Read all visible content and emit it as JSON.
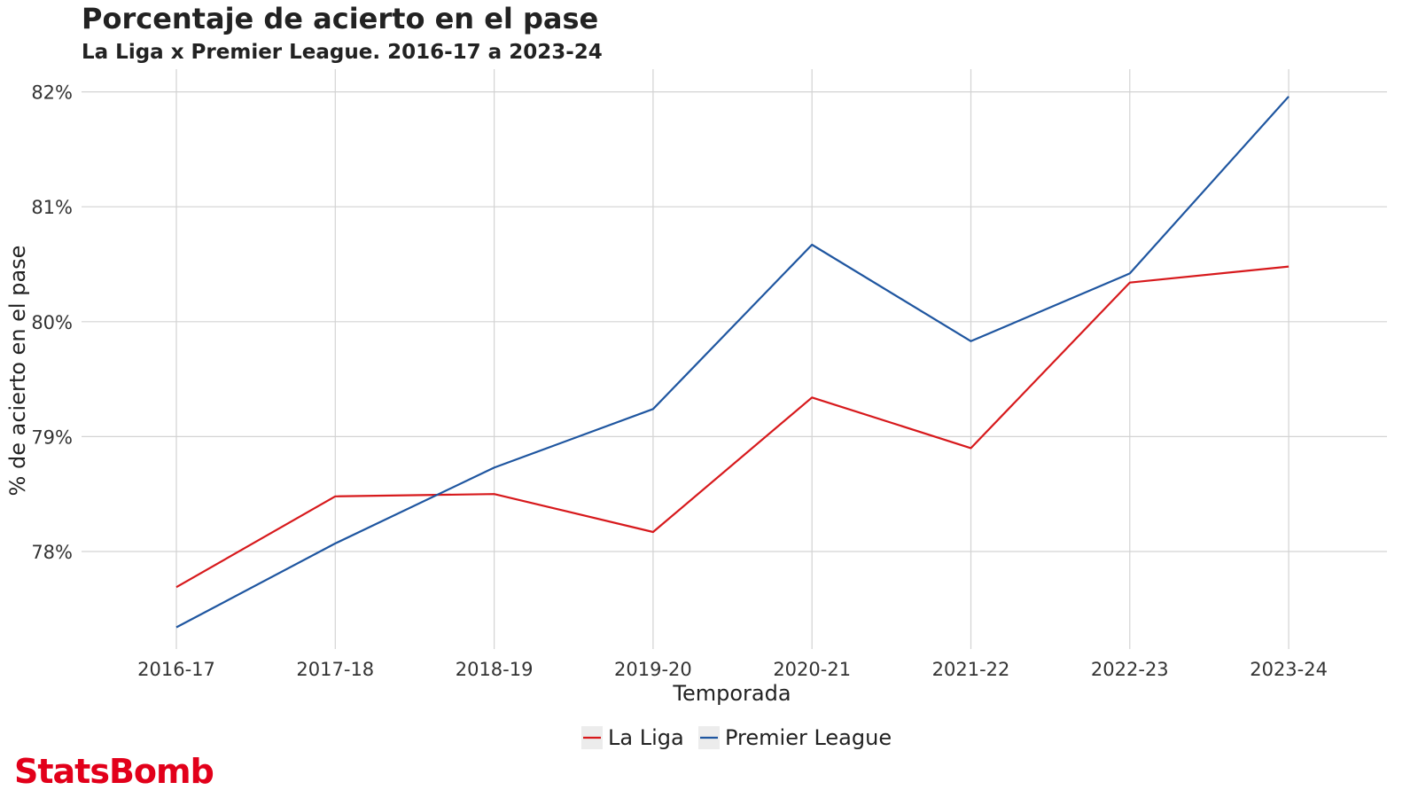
{
  "brand": {
    "name": "StatsBomb",
    "color": "#e2001a"
  },
  "chart_data": {
    "type": "line",
    "title": "Porcentaje de acierto en el pase",
    "subtitle": "La Liga x Premier League. 2016-17 a 2023-24",
    "xlabel": "Temporada",
    "ylabel": "% de acierto en el pase",
    "categories": [
      "2016-17",
      "2017-18",
      "2018-19",
      "2019-20",
      "2020-21",
      "2021-22",
      "2022-23",
      "2023-24"
    ],
    "y_ticks": [
      78,
      79,
      80,
      81,
      82
    ],
    "y_tick_labels": [
      "78%",
      "79%",
      "80%",
      "81%",
      "82%"
    ],
    "ylim": [
      77.15,
      82.2
    ],
    "grid": true,
    "legend_position": "bottom",
    "series": [
      {
        "name": "La Liga",
        "color": "#d7191c",
        "values": [
          77.69,
          78.48,
          78.5,
          78.17,
          79.34,
          78.9,
          80.34,
          80.48
        ]
      },
      {
        "name": "Premier League",
        "color": "#1f56a0",
        "values": [
          77.34,
          78.07,
          78.73,
          79.24,
          80.67,
          79.83,
          80.42,
          81.96
        ]
      }
    ]
  }
}
